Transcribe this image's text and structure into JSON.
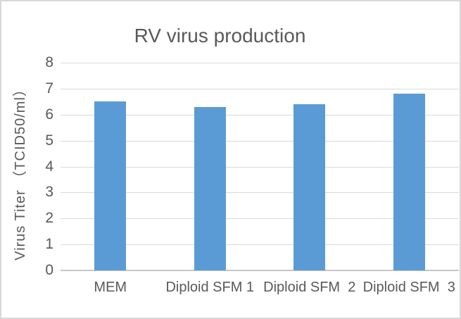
{
  "chart_data": {
    "type": "bar",
    "title": "RV virus production",
    "categories": [
      "MEM",
      "Diploid SFM 1",
      "Diploid SFM  2",
      "Diploid SFM  3"
    ],
    "values": [
      6.5,
      6.3,
      6.4,
      6.8
    ],
    "xlabel": "",
    "ylabel": "Virus Titer （TCID50/ml）",
    "ylim": [
      0,
      8
    ],
    "yticks": [
      0,
      1,
      2,
      3,
      4,
      5,
      6,
      7,
      8
    ],
    "grid": true,
    "legend_position": "none",
    "colors": {
      "bar": "#5b9bd5",
      "gridline": "#d9d9d9",
      "axis_line": "#c6c6c6",
      "text": "#595959",
      "frame_border": "#d8d8d8",
      "background": "#ffffff"
    }
  }
}
